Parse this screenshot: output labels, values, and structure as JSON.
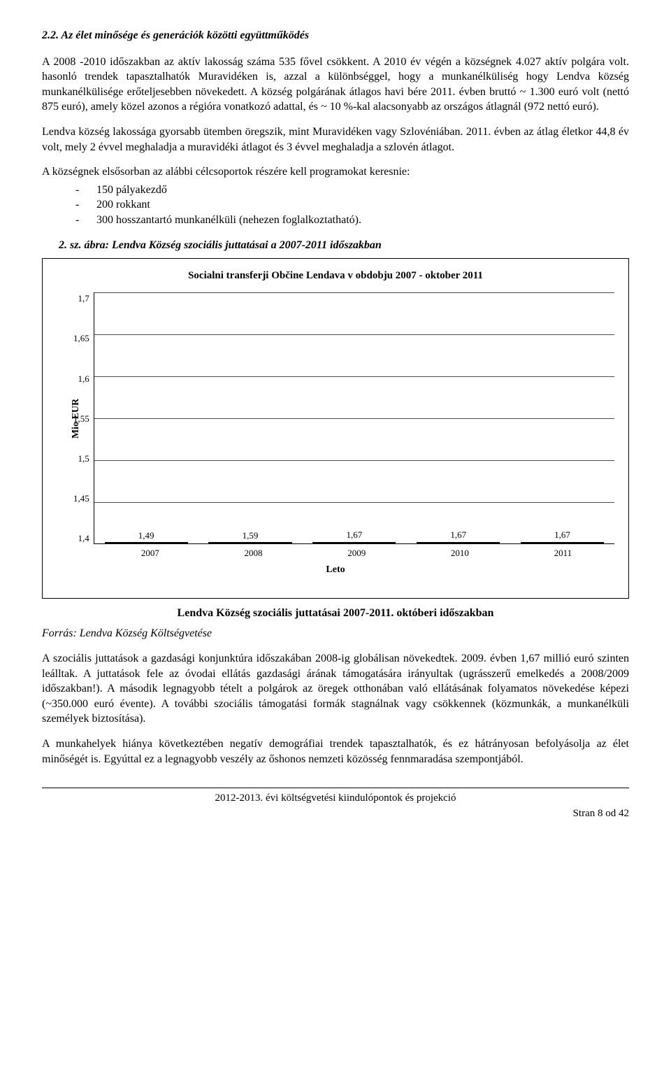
{
  "heading": "2.2. Az élet minősége és generációk közötti együttműködés",
  "para1": "A 2008 -2010 időszakban az aktív lakosság száma 535 fővel csökkent. A 2010 év végén a községnek 4.027 aktív polgára volt. hasonló trendek tapasztalhatók Muravidéken is, azzal a különbséggel, hogy a munkanélküliség hogy Lendva község munkanélkülisége erőteljesebben növekedett. A község polgárának átlagos havi bére 2011. évben bruttó ~ 1.300 euró volt (nettó 875 euró), amely közel azonos a régióra vonatkozó adattal, és ~ 10 %-kal alacsonyabb az országos átlagnál (972 nettó euró).",
  "para2": "Lendva község lakossága gyorsabb ütemben öregszik, mint Muravidéken vagy Szlovéniában. 2011. évben az átlag életkor 44,8 év volt, mely 2 évvel meghaladja a muravidéki átlagot és 3 évvel meghaladja a szlovén átlagot.",
  "para3_lead": "A községnek elsősorban az alábbi célcsoportok részére kell programokat keresnie:",
  "bullets": [
    "150 pályakezdő",
    "200 rokkant",
    "300 hosszantartó munkanélküli (nehezen foglalkoztatható)."
  ],
  "fig_caption": "2. sz. ábra: Lendva Község szociális  juttatásai  a  2007-2011 időszakban",
  "chart": {
    "type": "bar",
    "title": "Socialni transferji Občine Lendava v obdobju 2007 - oktober 2011",
    "categories": [
      "2007",
      "2008",
      "2009",
      "2010",
      "2011"
    ],
    "values": [
      1.49,
      1.59,
      1.67,
      1.67,
      1.67
    ],
    "value_labels": [
      "1,49",
      "1,59",
      "1,67",
      "1,67",
      "1,67"
    ],
    "bar_color": "#0000ff",
    "bar_border": "#000000",
    "ylim": [
      1.4,
      1.7
    ],
    "ytick_labels": [
      "1,7",
      "1,65",
      "1,6",
      "1,55",
      "1,5",
      "1,45",
      "1,4"
    ],
    "ylabel": "Mio EUR",
    "xlabel": "Leto",
    "background_color": "#ffffff",
    "grid_color": "#000000",
    "title_fontsize": 15,
    "label_fontsize": 14,
    "tick_fontsize": 13,
    "bar_width_pct": 16
  },
  "chart_caption": "Lendva Község szociális  juttatásai  2007-2011. októberi  időszakban",
  "source": "Forrás: Lendva Község Költségvetése",
  "para4": "A szociális juttatások a gazdasági konjunktúra időszakában 2008-ig globálisan növekedtek. 2009. évben 1,67 millió euró szinten leálltak. A juttatások fele az óvodai ellátás gazdasági árának támogatására irányultak (ugrásszerű emelkedés a 2008/2009 időszakban!). A második legnagyobb tételt a polgárok az öregek otthonában való ellátásának folyamatos növekedése képezi (~350.000 euró évente). A további szociális támogatási formák stagnálnak vagy csökkennek (közmunkák, a munkanélküli személyek biztosítása).",
  "para5": "A munkahelyek hiánya következtében negatív demográfiai trendek tapasztalhatók, és ez hátrányosan befolyásolja az élet minőségét is. Egyúttal ez a legnagyobb veszély az őshonos nemzeti közösség fennmaradása szempontjából.",
  "footer_title": "2012-2013. évi költségvetési kiindulópontok és projekció",
  "footer_page": "Stran 8 od 42"
}
